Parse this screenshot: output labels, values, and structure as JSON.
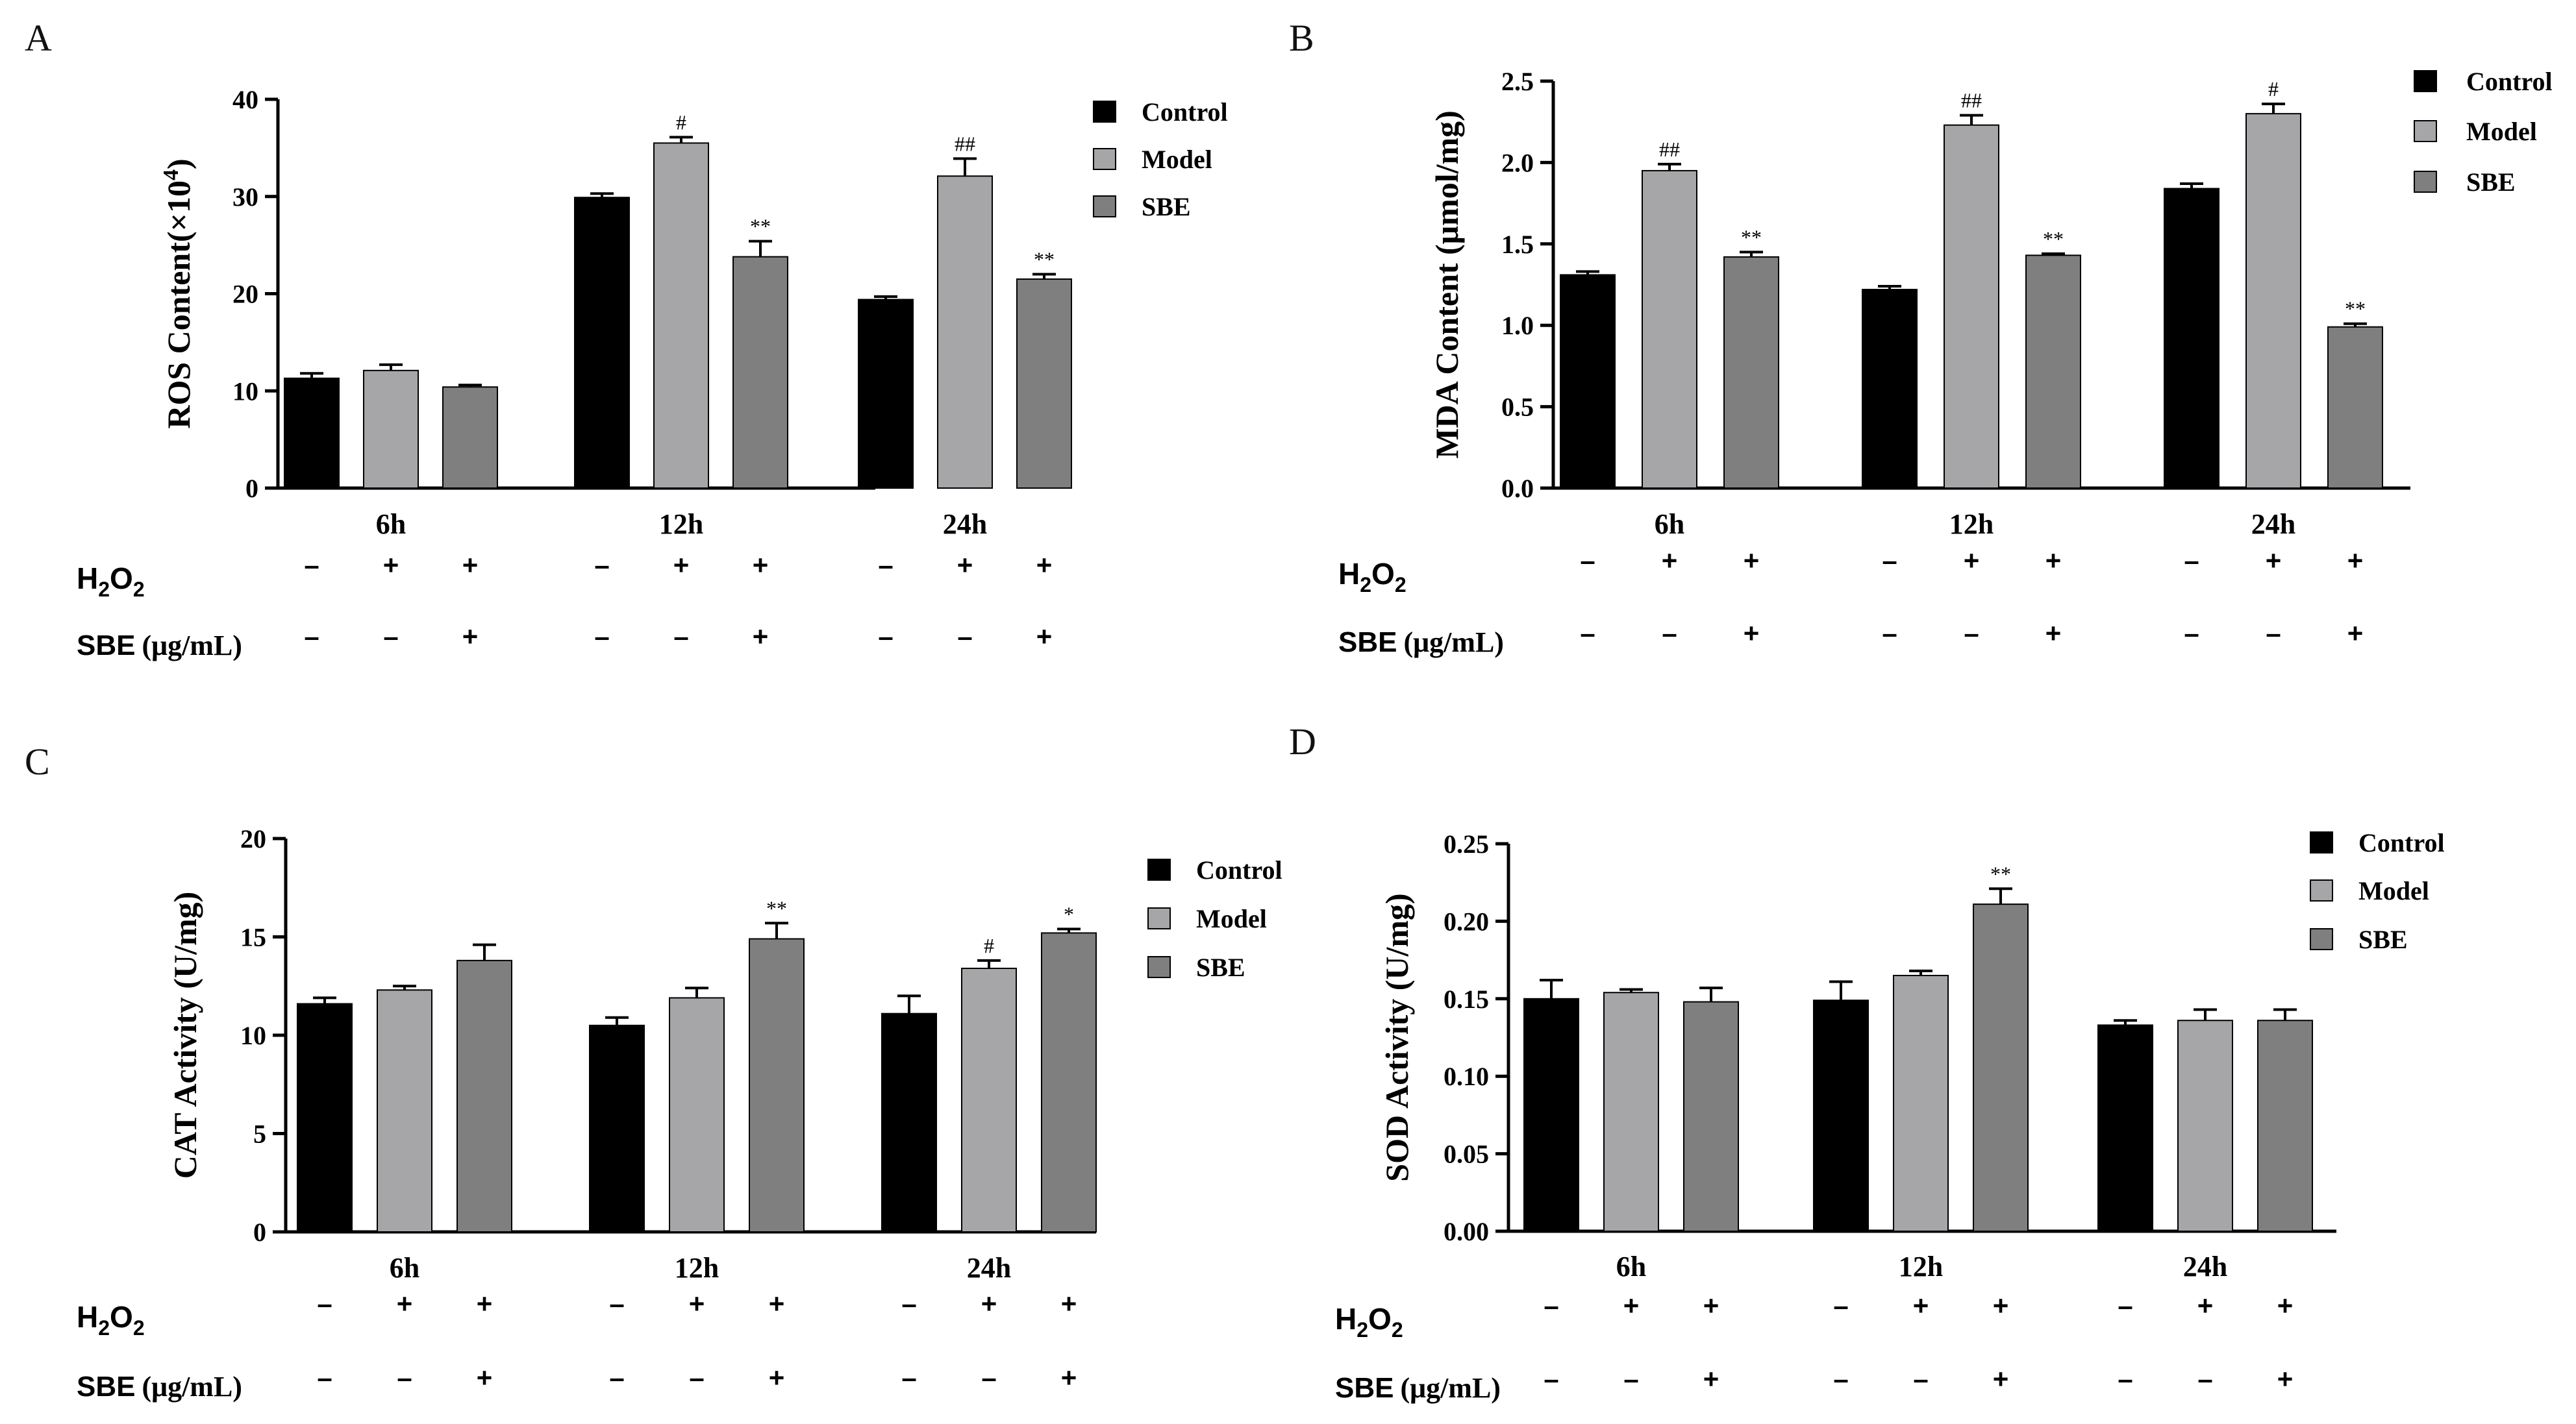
{
  "figure": {
    "treatment_rows": {
      "h2o2_label": "H2O2",
      "sbe_label_main": "SBE",
      "sbe_label_unit": "(μg/mL)",
      "minus": "–",
      "plus": "+",
      "h2o2_pattern": [
        "–",
        "+",
        "+"
      ],
      "sbe_pattern": [
        "–",
        "–",
        "+"
      ]
    },
    "colors": {
      "Control": "#000000",
      "Model": "#a6a6a8",
      "SBE": "#7f7f7f"
    }
  },
  "chart_data": [
    {
      "panel": "A",
      "type": "bar",
      "ylabel_main": "ROS Content(×10",
      "ylabel_sup": "4",
      "ylabel_end": ")",
      "ylim": [
        0,
        40
      ],
      "yticks": [
        "0",
        "10",
        "20",
        "30",
        "40"
      ],
      "categories": [
        "6h",
        "12h",
        "24h"
      ],
      "legend": [
        "Control",
        "Model",
        "SBE"
      ],
      "series": [
        {
          "name": "Control",
          "values": [
            11.3,
            29.9,
            19.4
          ],
          "errors": [
            0.5,
            0.4,
            0.3
          ],
          "annotations": [
            "",
            "",
            ""
          ]
        },
        {
          "name": "Model",
          "values": [
            12.1,
            35.5,
            32.1
          ],
          "errors": [
            0.6,
            0.6,
            1.8
          ],
          "annotations": [
            "",
            "#",
            "##"
          ]
        },
        {
          "name": "SBE",
          "values": [
            10.4,
            23.8,
            21.5
          ],
          "errors": [
            0.2,
            1.6,
            0.5
          ],
          "annotations": [
            "",
            "**",
            "**"
          ]
        }
      ]
    },
    {
      "panel": "B",
      "type": "bar",
      "ylabel_main": "MDA Content (μmol/mg)",
      "ylabel_sup": "",
      "ylabel_end": "",
      "ylim": [
        0,
        2.5
      ],
      "yticks": [
        "0.0",
        "0.5",
        "1.0",
        "1.5",
        "2.0",
        "2.5"
      ],
      "categories": [
        "6h",
        "12h",
        "24h"
      ],
      "legend": [
        "Control",
        "Model",
        "SBE"
      ],
      "series": [
        {
          "name": "Control",
          "values": [
            1.31,
            1.22,
            1.84
          ],
          "errors": [
            0.02,
            0.02,
            0.03
          ],
          "annotations": [
            "",
            "",
            ""
          ]
        },
        {
          "name": "Model",
          "values": [
            1.95,
            2.23,
            2.3
          ],
          "errors": [
            0.04,
            0.06,
            0.06
          ],
          "annotations": [
            "##",
            "##",
            "#"
          ]
        },
        {
          "name": "SBE",
          "values": [
            1.42,
            1.43,
            0.99
          ],
          "errors": [
            0.03,
            0.01,
            0.02
          ],
          "annotations": [
            "**",
            "**",
            "**"
          ]
        }
      ]
    },
    {
      "panel": "C",
      "type": "bar",
      "ylabel_main": "CAT Activity (U/mg)",
      "ylabel_sup": "",
      "ylabel_end": "",
      "ylim": [
        0,
        20
      ],
      "yticks": [
        "0",
        "5",
        "10",
        "15",
        "20"
      ],
      "categories": [
        "6h",
        "12h",
        "24h"
      ],
      "legend": [
        "Control",
        "Model",
        "SBE"
      ],
      "series": [
        {
          "name": "Control",
          "values": [
            11.6,
            10.5,
            11.1
          ],
          "errors": [
            0.3,
            0.4,
            0.9
          ],
          "annotations": [
            "",
            "",
            ""
          ]
        },
        {
          "name": "Model",
          "values": [
            12.3,
            11.9,
            13.4
          ],
          "errors": [
            0.2,
            0.5,
            0.4
          ],
          "annotations": [
            "",
            "",
            "#"
          ]
        },
        {
          "name": "SBE",
          "values": [
            13.8,
            14.9,
            15.2
          ],
          "errors": [
            0.8,
            0.8,
            0.2
          ],
          "annotations": [
            "",
            "**",
            "*"
          ]
        }
      ]
    },
    {
      "panel": "D",
      "type": "bar",
      "ylabel_main": "SOD Activity (U/mg)",
      "ylabel_sup": "",
      "ylabel_end": "",
      "ylim": [
        0,
        0.25
      ],
      "yticks": [
        "0.00",
        "0.05",
        "0.10",
        "0.15",
        "0.20",
        "0.25"
      ],
      "categories": [
        "6h",
        "12h",
        "24h"
      ],
      "legend": [
        "Control",
        "Model",
        "SBE"
      ],
      "series": [
        {
          "name": "Control",
          "values": [
            0.15,
            0.149,
            0.133
          ],
          "errors": [
            0.012,
            0.012,
            0.003
          ],
          "annotations": [
            "",
            "",
            ""
          ]
        },
        {
          "name": "Model",
          "values": [
            0.154,
            0.165,
            0.136
          ],
          "errors": [
            0.002,
            0.003,
            0.007
          ],
          "annotations": [
            "",
            "",
            ""
          ]
        },
        {
          "name": "SBE",
          "values": [
            0.148,
            0.211,
            0.136
          ],
          "errors": [
            0.009,
            0.01,
            0.007
          ],
          "annotations": [
            "",
            "**",
            ""
          ]
        }
      ]
    }
  ]
}
